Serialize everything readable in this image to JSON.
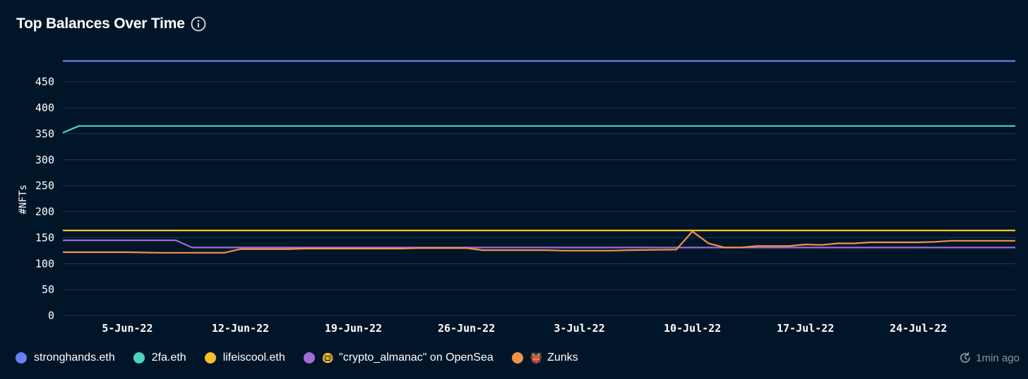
{
  "header": {
    "title": "Top Balances Over Time"
  },
  "footer": {
    "last_updated": "1min ago"
  },
  "chart_data": {
    "type": "line",
    "title": "Top Balances Over Time",
    "xlabel": "",
    "ylabel": "#NFTs",
    "ylim": [
      0,
      490
    ],
    "yticks": [
      0,
      50,
      100,
      150,
      200,
      250,
      300,
      350,
      400,
      450
    ],
    "x_start_day": -4,
    "x_end_day": 55,
    "xticks": [
      {
        "day": 0,
        "label": "5-Jun-22"
      },
      {
        "day": 7,
        "label": "12-Jun-22"
      },
      {
        "day": 14,
        "label": "19-Jun-22"
      },
      {
        "day": 21,
        "label": "26-Jun-22"
      },
      {
        "day": 28,
        "label": "3-Jul-22"
      },
      {
        "day": 35,
        "label": "10-Jul-22"
      },
      {
        "day": 42,
        "label": "17-Jul-22"
      },
      {
        "day": 49,
        "label": "24-Jul-22"
      }
    ],
    "series": [
      {
        "name": "stronghands.eth",
        "emoji": "",
        "color": "#6a7ff0",
        "points": [
          [
            -4,
            490
          ],
          [
            55,
            490
          ]
        ]
      },
      {
        "name": "2fa.eth",
        "emoji": "",
        "color": "#4fd1c5",
        "points": [
          [
            -4,
            352
          ],
          [
            -3,
            365
          ],
          [
            55,
            365
          ]
        ]
      },
      {
        "name": "lifeiscool.eth",
        "emoji": "",
        "color": "#f6c026",
        "points": [
          [
            -4,
            164
          ],
          [
            55,
            164
          ]
        ]
      },
      {
        "name": "\"crypto_almanac\" on OpenSea",
        "emoji": "🤓",
        "color": "#9f6bd6",
        "points": [
          [
            -4,
            145
          ],
          [
            3,
            145
          ],
          [
            4,
            131
          ],
          [
            55,
            131
          ]
        ]
      },
      {
        "name": "Zunks",
        "emoji": "👹",
        "color": "#f5924a",
        "points": [
          [
            -4,
            122
          ],
          [
            0,
            122
          ],
          [
            2,
            121
          ],
          [
            6,
            121
          ],
          [
            7,
            128
          ],
          [
            10,
            128
          ],
          [
            11,
            129
          ],
          [
            17,
            129
          ],
          [
            18,
            130
          ],
          [
            21,
            130
          ],
          [
            22,
            126
          ],
          [
            25,
            126
          ],
          [
            26,
            126
          ],
          [
            27,
            125
          ],
          [
            30,
            125
          ],
          [
            31,
            126
          ],
          [
            34,
            127
          ],
          [
            35,
            162
          ],
          [
            36,
            139
          ],
          [
            37,
            131
          ],
          [
            38,
            131
          ],
          [
            39,
            134
          ],
          [
            41,
            134
          ],
          [
            42,
            137
          ],
          [
            43,
            136
          ],
          [
            44,
            139
          ],
          [
            45,
            139
          ],
          [
            46,
            141
          ],
          [
            49,
            141
          ],
          [
            50,
            142
          ],
          [
            51,
            144
          ],
          [
            55,
            144
          ]
        ]
      }
    ]
  },
  "icons": {
    "info": "info-circle-icon",
    "refresh": "refresh-icon"
  }
}
